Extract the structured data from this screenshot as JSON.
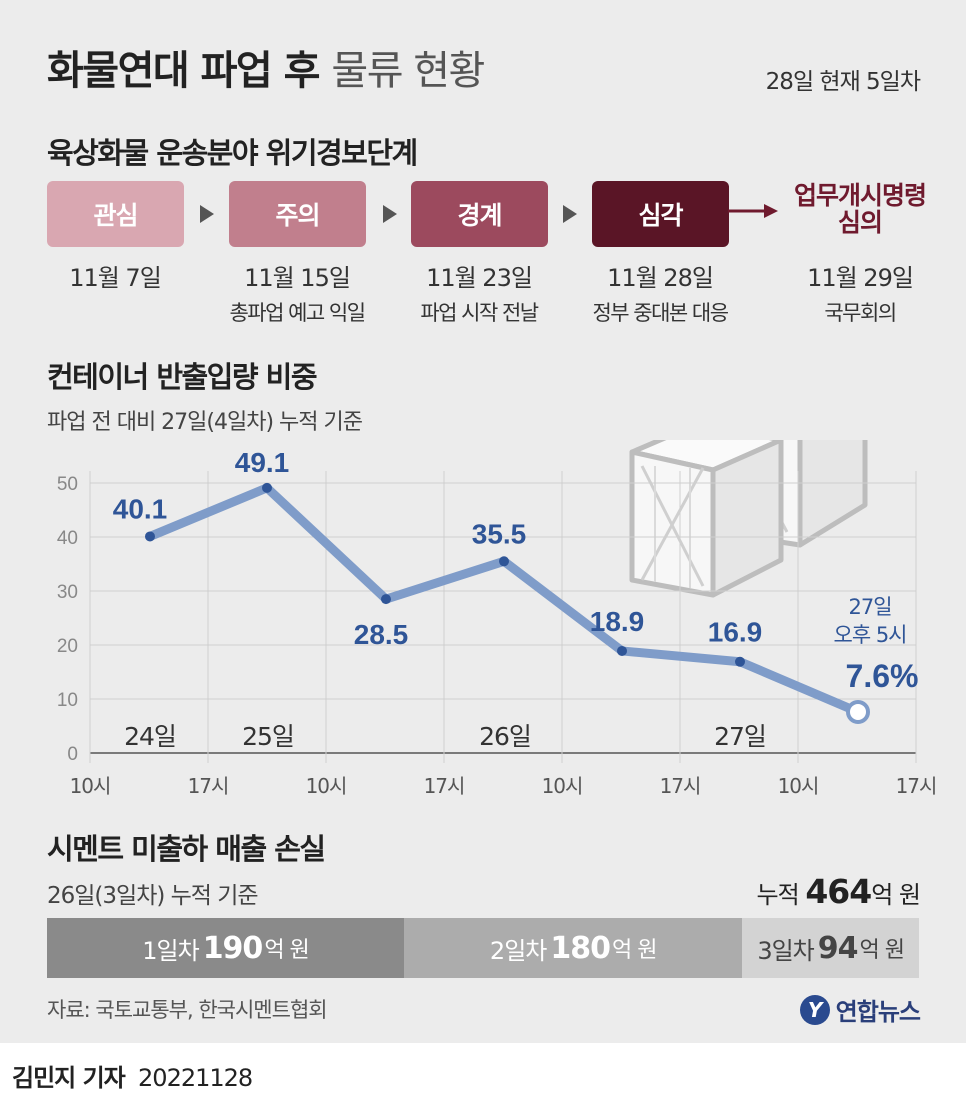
{
  "header": {
    "title_bold": "화물연대 파업 후",
    "title_rest": "물류 현황",
    "status": "28일 현재 5일차"
  },
  "alert_section": {
    "title": "육상화물 운송분야 위기경보단계",
    "stages": [
      {
        "label": "관심",
        "date": "11월 7일",
        "note": "",
        "color": "#d9a7b1"
      },
      {
        "label": "주의",
        "date": "11월 15일",
        "note": "총파업 예고 익일",
        "color": "#c17f8d"
      },
      {
        "label": "경계",
        "date": "11월 23일",
        "note": "파업 시작 전날",
        "color": "#9c4a5e"
      },
      {
        "label": "심각",
        "date": "11월 28일",
        "note": "정부 중대본 대응",
        "color": "#5a1526"
      }
    ],
    "final": {
      "label_line1": "업무개시명령",
      "label_line2": "심의",
      "date": "11월 29일",
      "note": "국무회의",
      "color": "#6f1a2e"
    }
  },
  "container_section": {
    "title": "컨테이너 반출입량 비중",
    "subtitle": "파업 전 대비 27일(4일차) 누적 기준"
  },
  "chart_data": {
    "type": "line",
    "x": [
      "24일 15시",
      "25일 10시",
      "25일 15시",
      "26일 10시",
      "26일 15시",
      "27일 10시",
      "27일 17시"
    ],
    "values": [
      40.1,
      49.1,
      28.5,
      35.5,
      18.9,
      16.9,
      7.6
    ],
    "value_labels": [
      "40.1",
      "49.1",
      "28.5",
      "35.5",
      "18.9",
      "16.9",
      "7.6%"
    ],
    "x_tick_labels": [
      "10시",
      "17시",
      "10시",
      "17시",
      "10시",
      "17시",
      "10시",
      "17시"
    ],
    "day_labels": [
      "24일",
      "25일",
      "26일",
      "27일"
    ],
    "ylim": [
      0,
      50
    ],
    "y_ticks": [
      "0",
      "10",
      "20",
      "30",
      "40",
      "50"
    ],
    "grid": true,
    "last_point_note_line1": "27일",
    "last_point_note_line2": "오후 5시",
    "line_color": "#7f9cc9",
    "label_color": "#2f5597"
  },
  "cement_section": {
    "title": "시멘트 미출하 매출 손실",
    "subtitle": "26일(3일차) 누적 기준",
    "total_prefix": "누적",
    "total_value": "464",
    "total_unit": "억 원",
    "segments": [
      {
        "day": "1일차",
        "value": "190",
        "unit": "억 원",
        "amount": 190,
        "color": "#8a8a8a",
        "text_color": "#ffffff"
      },
      {
        "day": "2일차",
        "value": "180",
        "unit": "억 원",
        "amount": 180,
        "color": "#acacac",
        "text_color": "#ffffff"
      },
      {
        "day": "3일차",
        "value": "94",
        "unit": "억 원",
        "amount": 94,
        "color": "#d3d3d3",
        "text_color": "#444444"
      }
    ]
  },
  "footer": {
    "source": "자료: 국토교통부, 한국시멘트협회",
    "logo_text": "연합뉴스",
    "logo_mark": "Y"
  },
  "byline": {
    "reporter": "김민지 기자",
    "date": "20221128"
  }
}
